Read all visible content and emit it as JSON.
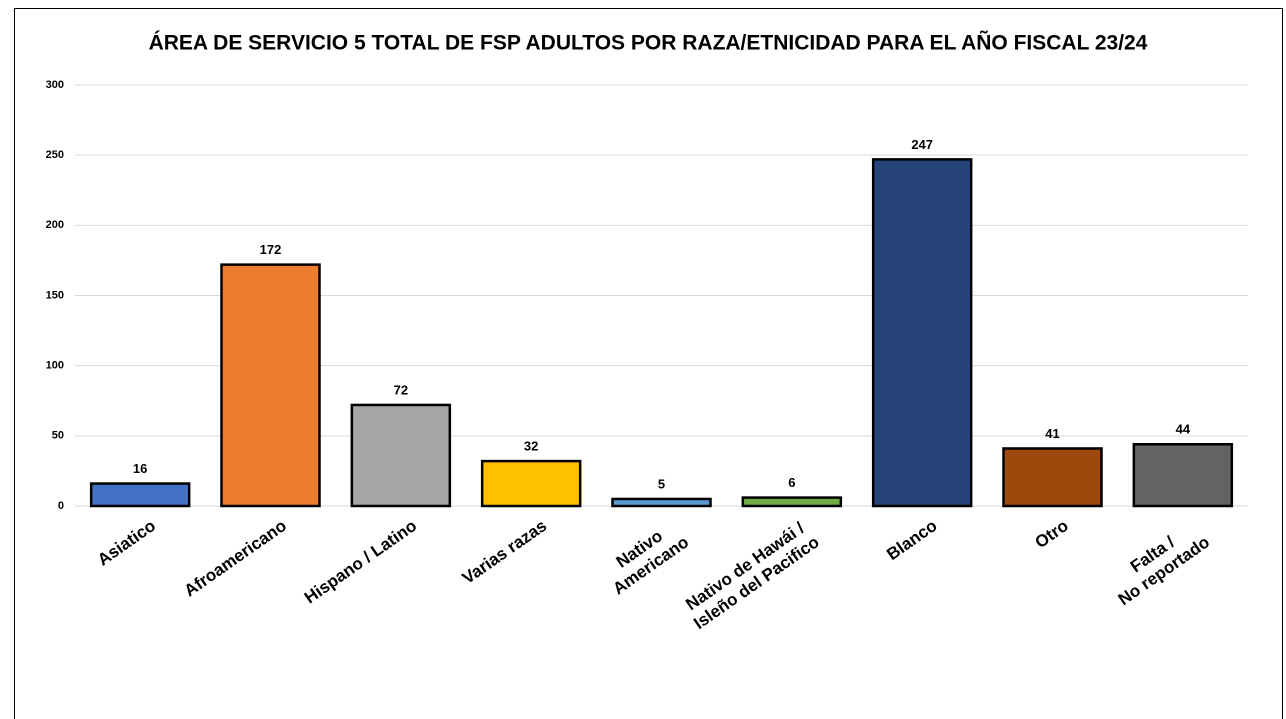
{
  "chart_data": {
    "type": "bar",
    "title": "ÁREA DE SERVICIO 5 TOTAL DE FSP ADULTOS POR RAZA/ETNICIDAD PARA EL AÑO FISCAL 23/24",
    "categories": [
      "Asiatico",
      "Afroamericano",
      "Hispano / Latino",
      "Varias razas",
      "Nativo\nAmericano",
      "Nativo de Hawái /\nIsleño del Pacifico",
      "Blanco",
      "Otro",
      "Falta /\nNo reportado"
    ],
    "values": [
      16,
      172,
      72,
      32,
      5,
      6,
      247,
      41,
      44
    ],
    "colors": [
      "#4472c4",
      "#ed7d31",
      "#a5a5a5",
      "#ffc000",
      "#5b9bd5",
      "#70ad47",
      "#264478",
      "#9e480e",
      "#636363"
    ],
    "ylim": [
      0,
      300
    ],
    "yticks": [
      0,
      50,
      100,
      150,
      200,
      250,
      300
    ],
    "grid": true
  }
}
